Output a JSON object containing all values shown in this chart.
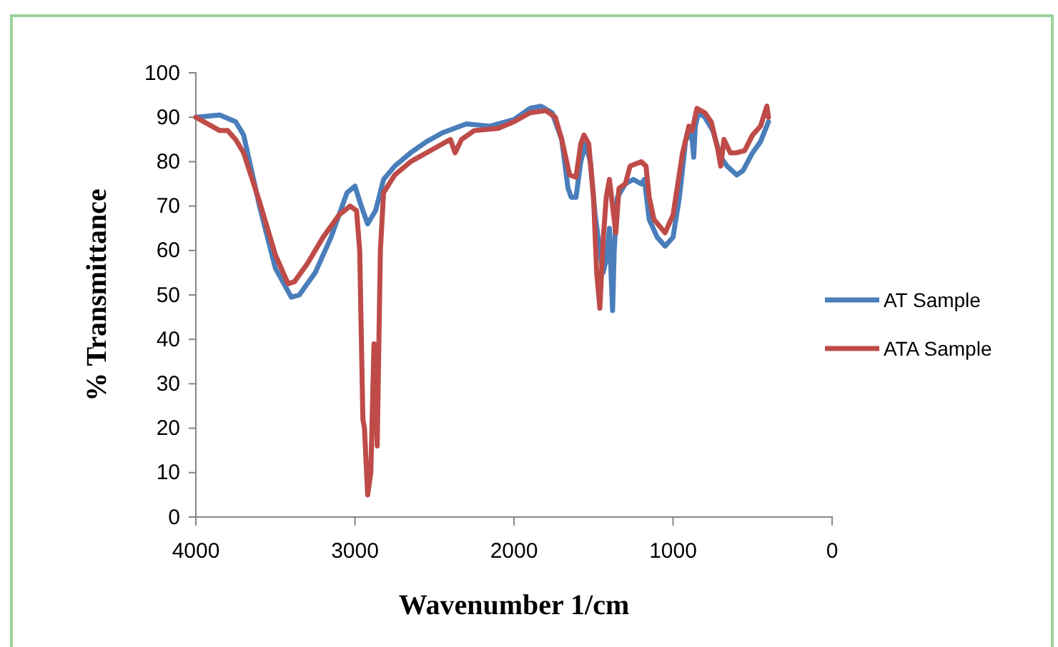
{
  "chart_data": {
    "type": "line",
    "xlabel": "Wavenumber 1/cm",
    "ylabel": "% Transmittance",
    "xlim": [
      4000,
      0
    ],
    "xticks": [
      4000,
      3000,
      2000,
      1000,
      0
    ],
    "ylim": [
      0,
      100
    ],
    "yticks": [
      0,
      10,
      20,
      30,
      40,
      50,
      60,
      70,
      80,
      90,
      100
    ],
    "grid": false,
    "legend": "right",
    "marker": "none",
    "line_style": "solid",
    "series": [
      {
        "name": "AT Sample",
        "color": "#4a7ebb",
        "x": [
          4000,
          3850,
          3750,
          3700,
          3600,
          3500,
          3400,
          3350,
          3250,
          3150,
          3050,
          3000,
          2960,
          2920,
          2870,
          2820,
          2750,
          2650,
          2550,
          2450,
          2300,
          2150,
          2000,
          1900,
          1830,
          1760,
          1700,
          1660,
          1640,
          1610,
          1580,
          1550,
          1520,
          1490,
          1460,
          1440,
          1420,
          1400,
          1390,
          1380,
          1370,
          1350,
          1300,
          1250,
          1200,
          1180,
          1150,
          1100,
          1050,
          1000,
          960,
          920,
          890,
          880,
          870,
          860,
          840,
          800,
          750,
          700,
          660,
          600,
          560,
          500,
          450,
          400
        ],
        "values": [
          90,
          90.5,
          89,
          86,
          70,
          56,
          49.5,
          50,
          55,
          63,
          73,
          74.5,
          70,
          66,
          69,
          76,
          79,
          82,
          84.5,
          86.5,
          88.5,
          88,
          89.5,
          92,
          92.5,
          91,
          85,
          74,
          72,
          72,
          80,
          84,
          80,
          68,
          60,
          55,
          58,
          65,
          55,
          46.5,
          60,
          72,
          75,
          76,
          75,
          76,
          67,
          63,
          61,
          63,
          72,
          85,
          86,
          85,
          81,
          88,
          91,
          90,
          87,
          81,
          79,
          77,
          78,
          82,
          84.5,
          89
        ]
      },
      {
        "name": "ATA Sample",
        "color": "#be4b48",
        "x": [
          4000,
          3900,
          3850,
          3800,
          3750,
          3700,
          3600,
          3500,
          3420,
          3380,
          3300,
          3200,
          3100,
          3030,
          2990,
          2970,
          2950,
          2940,
          2920,
          2900,
          2880,
          2870,
          2860,
          2840,
          2820,
          2750,
          2650,
          2500,
          2400,
          2370,
          2330,
          2250,
          2100,
          2000,
          1900,
          1800,
          1740,
          1700,
          1650,
          1610,
          1580,
          1560,
          1530,
          1500,
          1480,
          1460,
          1440,
          1420,
          1400,
          1380,
          1360,
          1340,
          1300,
          1270,
          1200,
          1170,
          1150,
          1120,
          1050,
          1000,
          940,
          900,
          880,
          850,
          800,
          760,
          720,
          700,
          680,
          640,
          600,
          550,
          500,
          450,
          410,
          400
        ],
        "values": [
          90,
          88,
          87,
          87,
          85,
          82,
          71,
          59,
          52.5,
          53,
          57,
          63,
          68,
          70,
          69,
          60,
          22,
          20,
          5,
          10,
          39,
          30,
          16,
          60,
          73,
          77,
          80,
          83,
          85,
          82,
          85,
          87,
          87.5,
          89,
          91,
          91.5,
          90,
          85,
          77,
          76.5,
          84,
          86,
          84,
          72,
          55,
          47,
          62,
          72,
          76,
          70,
          64,
          74,
          75,
          79,
          80,
          79,
          72,
          67,
          64,
          68,
          82,
          88,
          87,
          92,
          91,
          89,
          83,
          79,
          85,
          82,
          82,
          82.5,
          86,
          88,
          92.5,
          90
        ]
      }
    ]
  }
}
